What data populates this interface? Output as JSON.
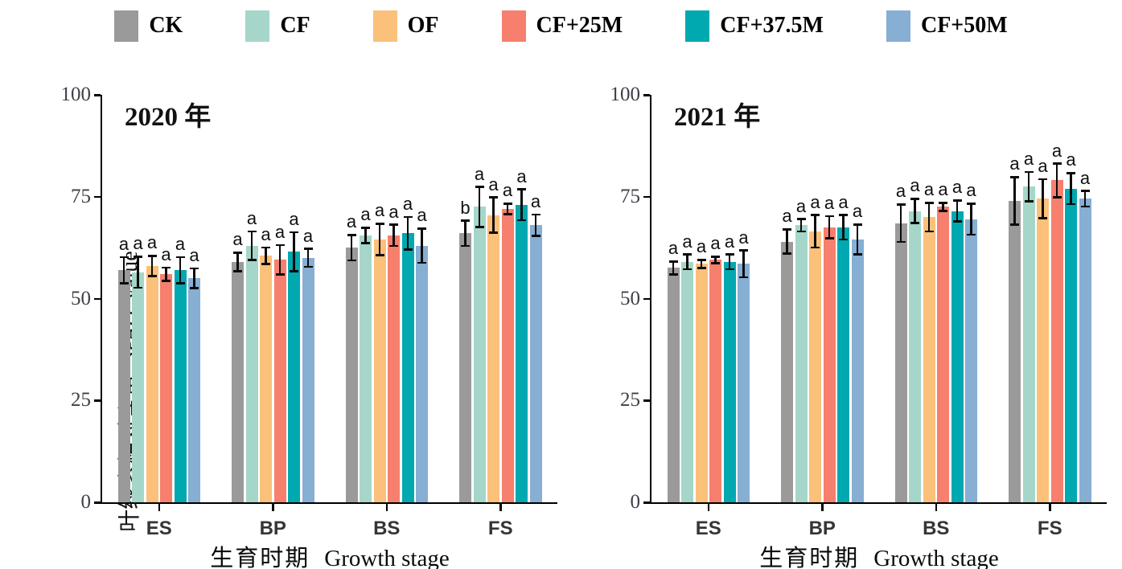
{
  "legend": {
    "items": [
      {
        "label": "CK",
        "color": "#9a9a9a"
      },
      {
        "label": "CF",
        "color": "#a5d6c9"
      },
      {
        "label": "OF",
        "color": "#fbc07a"
      },
      {
        "label": "CF+25M",
        "color": "#f67f6e"
      },
      {
        "label": "CF+37.5M",
        "color": "#00a8b0"
      },
      {
        "label": "CF+50M",
        "color": "#87aed3"
      }
    ]
  },
  "y_axis": {
    "label_zh": "叶绿素相对含量",
    "label_italic": "SPAD",
    "label_en": "value",
    "ticks": [
      0,
      25,
      50,
      75,
      100
    ]
  },
  "x_axis": {
    "title_zh": "生育时期",
    "title_en": "Growth stage",
    "categories": [
      "ES",
      "BP",
      "BS",
      "FS"
    ]
  },
  "chart_data": [
    {
      "type": "bar",
      "title": "2020 年",
      "categories": [
        "ES",
        "BP",
        "BS",
        "FS"
      ],
      "ylim": [
        0,
        100
      ],
      "grid": false,
      "series": [
        {
          "name": "CK",
          "color": "#9a9a9a",
          "values": [
            57,
            59,
            62.5,
            66
          ],
          "errors": [
            3.2,
            2.3,
            3.1,
            3.1
          ],
          "letters": [
            "a",
            "a",
            "a",
            "b"
          ]
        },
        {
          "name": "CF",
          "color": "#a5d6c9",
          "values": [
            56.5,
            63,
            65.5,
            72.5
          ],
          "errors": [
            3.8,
            3.5,
            1.9,
            4.9
          ],
          "letters": [
            "a",
            "a",
            "a",
            "a"
          ]
        },
        {
          "name": "OF",
          "color": "#fbc07a",
          "values": [
            58,
            60.5,
            64.5,
            70.5
          ],
          "errors": [
            2.5,
            2.0,
            3.9,
            4.3
          ],
          "letters": [
            "a",
            "a",
            "a",
            "a"
          ]
        },
        {
          "name": "CF+25M",
          "color": "#f67f6e",
          "values": [
            56,
            59.5,
            65.5,
            72
          ],
          "errors": [
            1.6,
            3.6,
            2.6,
            1.3
          ],
          "letters": [
            "a",
            "a",
            "a",
            "a"
          ]
        },
        {
          "name": "CF+37.5M",
          "color": "#00a8b0",
          "values": [
            57,
            61.5,
            66,
            73
          ],
          "errors": [
            3.2,
            4.8,
            4.0,
            3.8
          ],
          "letters": [
            "a",
            "a",
            "a",
            "a"
          ]
        },
        {
          "name": "CF+50M",
          "color": "#87aed3",
          "values": [
            55,
            60,
            63,
            68
          ],
          "errors": [
            2.4,
            2.2,
            4.2,
            2.6
          ],
          "letters": [
            "a",
            "a",
            "a",
            "a"
          ]
        }
      ]
    },
    {
      "type": "bar",
      "title": "2021 年",
      "categories": [
        "ES",
        "BP",
        "BS",
        "FS"
      ],
      "ylim": [
        0,
        100
      ],
      "grid": false,
      "series": [
        {
          "name": "CK",
          "color": "#9a9a9a",
          "values": [
            57.5,
            64,
            68.5,
            74
          ],
          "errors": [
            1.6,
            3.0,
            4.6,
            5.8
          ],
          "letters": [
            "a",
            "a",
            "a",
            "a"
          ]
        },
        {
          "name": "CF",
          "color": "#a5d6c9",
          "values": [
            59,
            68,
            71.5,
            77.5
          ],
          "errors": [
            1.8,
            1.5,
            3.0,
            3.6
          ],
          "letters": [
            "a",
            "a",
            "a",
            "a"
          ]
        },
        {
          "name": "OF",
          "color": "#fbc07a",
          "values": [
            58.5,
            66.5,
            70,
            74.5
          ],
          "errors": [
            1.0,
            4.0,
            3.5,
            4.8
          ],
          "letters": [
            "a",
            "a",
            "a",
            "a"
          ]
        },
        {
          "name": "CF+25M",
          "color": "#f67f6e",
          "values": [
            59.5,
            67.5,
            72.5,
            79
          ],
          "errors": [
            0.8,
            2.7,
            1.0,
            4.1
          ],
          "letters": [
            "a",
            "a",
            "a",
            "a"
          ]
        },
        {
          "name": "CF+37.5M",
          "color": "#00a8b0",
          "values": [
            59,
            67.5,
            71.5,
            77
          ],
          "errors": [
            1.8,
            3.0,
            2.6,
            3.8
          ],
          "letters": [
            "a",
            "a",
            "a",
            "a"
          ]
        },
        {
          "name": "CF+50M",
          "color": "#87aed3",
          "values": [
            58.5,
            64.5,
            69.5,
            74.5
          ],
          "errors": [
            3.3,
            3.7,
            3.8,
            1.9
          ],
          "letters": [
            "a",
            "a",
            "a",
            "a"
          ]
        }
      ]
    }
  ]
}
